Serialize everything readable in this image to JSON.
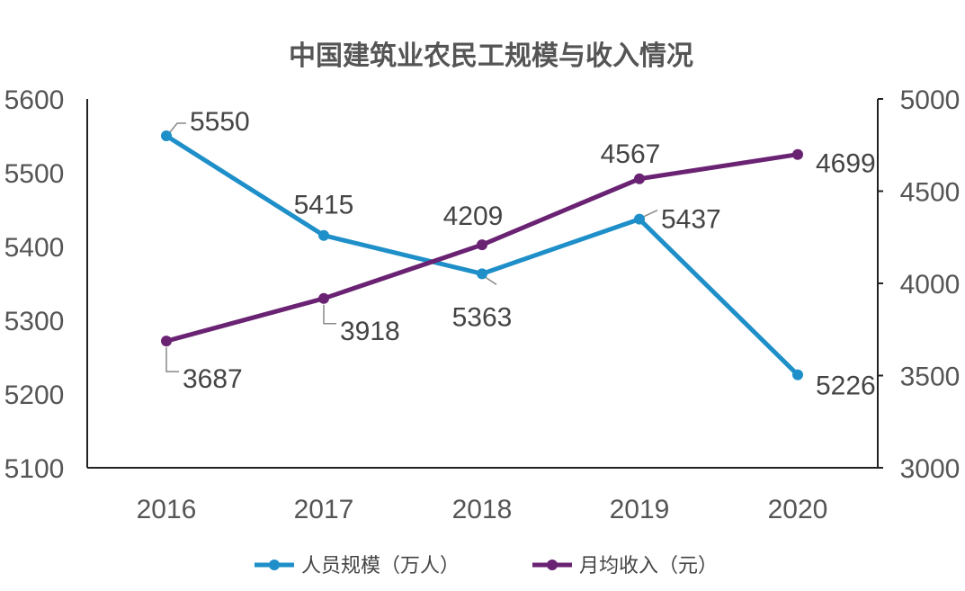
{
  "chart_data": {
    "type": "line",
    "title": "中国建筑业农民工规模与收入情况",
    "categories": [
      "2016",
      "2017",
      "2018",
      "2019",
      "2020"
    ],
    "y_left": {
      "ylim": [
        5100,
        5600
      ],
      "ticks": [
        "5100",
        "5200",
        "5300",
        "5400",
        "5500",
        "5600"
      ]
    },
    "y_right": {
      "ylim": [
        3000,
        5000
      ],
      "ticks": [
        "3000",
        "3500",
        "4000",
        "4500",
        "5000"
      ]
    },
    "grid": false,
    "legend_position": "bottom",
    "series": [
      {
        "name": "人员规模（万人）",
        "axis": "left",
        "color": "#1e8fc8",
        "values": [
          5550,
          5415,
          5363,
          5437,
          5226
        ],
        "labels": [
          "5550",
          "5415",
          "5363",
          "5437",
          "5226"
        ]
      },
      {
        "name": "月均收入（元）",
        "axis": "right",
        "color": "#6a2273",
        "values": [
          3687,
          3918,
          4209,
          4567,
          4699
        ],
        "labels": [
          "3687",
          "3918",
          "4209",
          "4567",
          "4699"
        ]
      }
    ]
  }
}
